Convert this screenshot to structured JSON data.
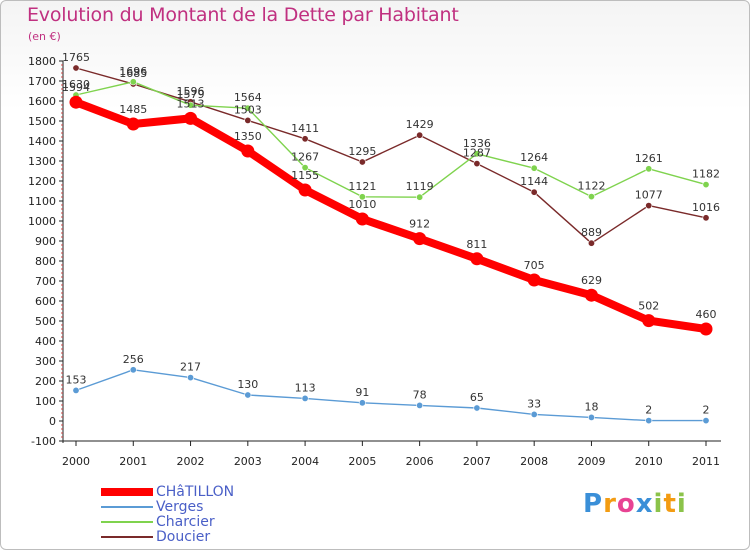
{
  "chart_data": {
    "type": "line",
    "title": "Evolution du Montant de la Dette par Habitant",
    "unit": "(en €)",
    "x": [
      "2000",
      "2001",
      "2002",
      "2003",
      "2004",
      "2005",
      "2006",
      "2007",
      "2008",
      "2009",
      "2010",
      "2011"
    ],
    "y_ticks": [
      "-100",
      "0",
      "100",
      "200",
      "300",
      "400",
      "500",
      "600",
      "700",
      "800",
      "900",
      "1000",
      "1100",
      "1200",
      "1300",
      "1400",
      "1500",
      "1600",
      "1700",
      "1800"
    ],
    "ylim": [
      -100,
      1800
    ],
    "grid": false,
    "legend_position": "bottom-left",
    "series": [
      {
        "name": "CHâTILLON",
        "color": "#ff0000",
        "values": [
          1594,
          1485,
          1513,
          1350,
          1155,
          1010,
          912,
          811,
          705,
          629,
          502,
          460
        ],
        "labels": [
          "1594",
          "1485",
          "1513",
          "1350",
          "1155",
          "1010",
          "912",
          "811",
          "705",
          "629",
          "502",
          "460"
        ]
      },
      {
        "name": "Verges",
        "color": "#5b9bd5",
        "values": [
          153,
          256,
          217,
          130,
          113,
          91,
          78,
          65,
          33,
          18,
          2,
          2
        ],
        "labels": [
          "153",
          "256",
          "217",
          "130",
          "113",
          "91",
          "78",
          "65",
          "33",
          "18",
          "2",
          "2"
        ]
      },
      {
        "name": "Charcier",
        "color": "#7fd34e",
        "values": [
          1630,
          1696,
          1579,
          1564,
          1267,
          1121,
          1119,
          1336,
          1264,
          1122,
          1261,
          1182
        ],
        "labels": [
          "1630",
          "1696",
          "1579",
          "1564",
          "1267",
          "1121",
          "1119",
          "1336",
          "1264",
          "1122",
          "1261",
          "1182"
        ]
      },
      {
        "name": "Doucier",
        "color": "#7a2a2a",
        "values": [
          1765,
          1685,
          1596,
          1503,
          1411,
          1295,
          1429,
          1287,
          1144,
          889,
          1077,
          1016
        ],
        "labels": [
          "1765",
          "1685",
          "1596",
          "1503",
          "1411",
          "1295",
          "1429",
          "1287",
          "1144",
          "889",
          "1077",
          "1016"
        ]
      }
    ]
  },
  "logo": {
    "letters": [
      "P",
      "r",
      "o",
      "x",
      "i",
      "t",
      "i"
    ],
    "colors": [
      "#3a8fd8",
      "#f39c12",
      "#e84393",
      "#3a8fd8",
      "#8bc34a",
      "#f39c12",
      "#8bc34a"
    ]
  }
}
